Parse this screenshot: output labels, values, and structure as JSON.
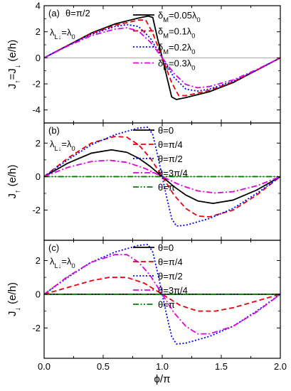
{
  "chart_data": [
    {
      "panel_label": "(a)",
      "type": "line",
      "xlabel": "ϕ/π",
      "ylabel": "J↑=J↓ (e/h)",
      "xlim": [
        0,
        2
      ],
      "ylim": [
        -5,
        4
      ],
      "yticks": [
        "-4",
        "-2",
        "0",
        "2",
        "4"
      ],
      "annotations": [
        "θ=π/2",
        "λL↓=λ0"
      ],
      "legend": "top-right",
      "series": [
        {
          "name": "δM=0.05λ0",
          "color": "#000000",
          "dash": "solid",
          "x": [
            0,
            0.2,
            0.4,
            0.6,
            0.8,
            0.88,
            0.92,
            0.96,
            1.0,
            1.04,
            1.08,
            1.12,
            1.2,
            1.4,
            1.6,
            1.8,
            2.0
          ],
          "y": [
            0,
            0.95,
            1.9,
            2.6,
            3.05,
            3.2,
            3.1,
            1.5,
            0,
            -1.5,
            -3.0,
            -3.2,
            -3.05,
            -2.6,
            -1.9,
            -0.95,
            0
          ]
        },
        {
          "name": "δM=0.1λ0",
          "color": "#e8000b",
          "dash": "dashed",
          "x": [
            0,
            0.2,
            0.4,
            0.6,
            0.8,
            0.86,
            0.92,
            1.0,
            1.08,
            1.14,
            1.2,
            1.4,
            1.6,
            1.8,
            2.0
          ],
          "y": [
            0,
            0.95,
            1.85,
            2.5,
            2.9,
            2.9,
            1.9,
            0,
            -1.9,
            -2.9,
            -2.9,
            -2.5,
            -1.85,
            -0.95,
            0
          ]
        },
        {
          "name": "δM=0.2λ0",
          "color": "#0000ff",
          "dash": "dotted",
          "x": [
            0,
            0.2,
            0.4,
            0.6,
            0.7,
            0.8,
            0.9,
            1.0,
            1.1,
            1.2,
            1.3,
            1.4,
            1.6,
            1.8,
            2.0
          ],
          "y": [
            0,
            0.95,
            1.8,
            2.4,
            2.55,
            2.4,
            1.5,
            0,
            -1.5,
            -2.4,
            -2.55,
            -2.4,
            -1.8,
            -0.95,
            0
          ]
        },
        {
          "name": "δM=0.3λ0",
          "color": "#e000e0",
          "dash": "dashdot",
          "x": [
            0,
            0.2,
            0.4,
            0.6,
            0.7,
            0.8,
            0.9,
            1.0,
            1.1,
            1.2,
            1.3,
            1.4,
            1.6,
            1.8,
            2.0
          ],
          "y": [
            0,
            0.9,
            1.7,
            2.2,
            2.3,
            2.05,
            1.2,
            0,
            -1.2,
            -2.05,
            -2.3,
            -2.2,
            -1.7,
            -0.9,
            0
          ]
        }
      ]
    },
    {
      "panel_label": "(b)",
      "type": "line",
      "xlabel": "ϕ/π",
      "ylabel": "J↑ (e/h)",
      "xlim": [
        0,
        2
      ],
      "ylim": [
        -3.8,
        3.2
      ],
      "yticks": [
        "-2",
        "0",
        "2"
      ],
      "annotations": [
        "λL↓=λ0"
      ],
      "legend": "top-right",
      "series": [
        {
          "name": "θ=0",
          "color": "#000000",
          "dash": "solid",
          "x": [
            0,
            0.2,
            0.4,
            0.57,
            0.7,
            0.8,
            0.9,
            1.0,
            1.1,
            1.2,
            1.3,
            1.43,
            1.6,
            1.8,
            2.0
          ],
          "y": [
            0,
            0.8,
            1.4,
            1.6,
            1.45,
            1.1,
            0.6,
            0,
            -0.6,
            -1.1,
            -1.45,
            -1.6,
            -1.4,
            -0.8,
            0
          ]
        },
        {
          "name": "θ=π/4",
          "color": "#e8000b",
          "dash": "dashed",
          "x": [
            0,
            0.2,
            0.4,
            0.6,
            0.7,
            0.8,
            0.9,
            1.0,
            1.1,
            1.2,
            1.3,
            1.4,
            1.6,
            1.8,
            2.0
          ],
          "y": [
            0,
            1.1,
            2.0,
            2.4,
            2.35,
            1.9,
            1.1,
            0,
            -1.1,
            -1.9,
            -2.35,
            -2.4,
            -2.0,
            -1.1,
            0
          ]
        },
        {
          "name": "θ=π/2",
          "color": "#0000ff",
          "dash": "dotted",
          "x": [
            0,
            0.2,
            0.4,
            0.6,
            0.8,
            0.88,
            0.92,
            0.96,
            1.0,
            1.04,
            1.08,
            1.12,
            1.2,
            1.4,
            1.6,
            1.8,
            2.0
          ],
          "y": [
            0,
            1.0,
            1.9,
            2.5,
            2.9,
            2.95,
            2.5,
            1.3,
            0,
            -1.3,
            -2.5,
            -2.95,
            -2.9,
            -2.5,
            -1.9,
            -1.0,
            0
          ]
        },
        {
          "name": "θ=3π/4",
          "color": "#e000e0",
          "dash": "dashdot",
          "x": [
            0,
            0.2,
            0.4,
            0.55,
            0.7,
            0.85,
            1.0,
            1.15,
            1.3,
            1.45,
            1.6,
            1.8,
            2.0
          ],
          "y": [
            0,
            0.55,
            0.9,
            0.98,
            0.85,
            0.5,
            0,
            -0.5,
            -0.85,
            -0.98,
            -0.9,
            -0.55,
            0
          ]
        },
        {
          "name": "θ=π",
          "color": "#008000",
          "dash": "dashdotdot",
          "x": [
            0,
            2
          ],
          "y": [
            0,
            0
          ]
        }
      ]
    },
    {
      "panel_label": "(c)",
      "type": "line",
      "xlabel": "ϕ/π",
      "ylabel": "J↓ (e/h)",
      "xlim": [
        0,
        2
      ],
      "ylim": [
        -3.8,
        3.2
      ],
      "yticks": [
        "-2",
        "0",
        "2"
      ],
      "xticks": [
        "0.0",
        "0.5",
        "1.0",
        "1.5",
        "2.0"
      ],
      "annotations": [
        "λL↓=λ0"
      ],
      "legend": "top-right",
      "series": [
        {
          "name": "θ=0",
          "color": "#000000",
          "dash": "solid",
          "x": [
            0,
            2
          ],
          "y": [
            0,
            0
          ]
        },
        {
          "name": "θ=π/4",
          "color": "#e8000b",
          "dash": "dashed",
          "x": [
            0,
            0.2,
            0.4,
            0.55,
            0.7,
            0.85,
            1.0,
            1.15,
            1.3,
            1.45,
            1.6,
            1.8,
            2.0
          ],
          "y": [
            0,
            0.4,
            0.8,
            1.0,
            1.0,
            0.65,
            0,
            -0.65,
            -1.0,
            -1.0,
            -0.8,
            -0.4,
            0
          ]
        },
        {
          "name": "θ=π/2",
          "color": "#0000ff",
          "dash": "dotted",
          "x": [
            0,
            0.2,
            0.4,
            0.6,
            0.8,
            0.88,
            0.92,
            0.96,
            1.0,
            1.04,
            1.08,
            1.12,
            1.2,
            1.4,
            1.6,
            1.8,
            2.0
          ],
          "y": [
            0,
            1.0,
            1.9,
            2.5,
            2.9,
            2.95,
            2.5,
            1.3,
            0,
            -1.3,
            -2.5,
            -2.95,
            -2.9,
            -2.5,
            -1.9,
            -1.0,
            0
          ]
        },
        {
          "name": "θ=3π/4",
          "color": "#e000e0",
          "dash": "dashdot",
          "x": [
            0,
            0.2,
            0.4,
            0.6,
            0.7,
            0.8,
            0.9,
            1.0,
            1.1,
            1.2,
            1.3,
            1.4,
            1.6,
            1.8,
            2.0
          ],
          "y": [
            0,
            1.05,
            1.9,
            2.35,
            2.35,
            1.9,
            1.1,
            0,
            -1.1,
            -1.9,
            -2.35,
            -2.35,
            -1.9,
            -1.05,
            0
          ]
        },
        {
          "name": "θ=π",
          "color": "#008000",
          "dash": "dashdotdot",
          "x": [
            0,
            2
          ],
          "y": [
            0,
            0
          ]
        }
      ]
    }
  ]
}
